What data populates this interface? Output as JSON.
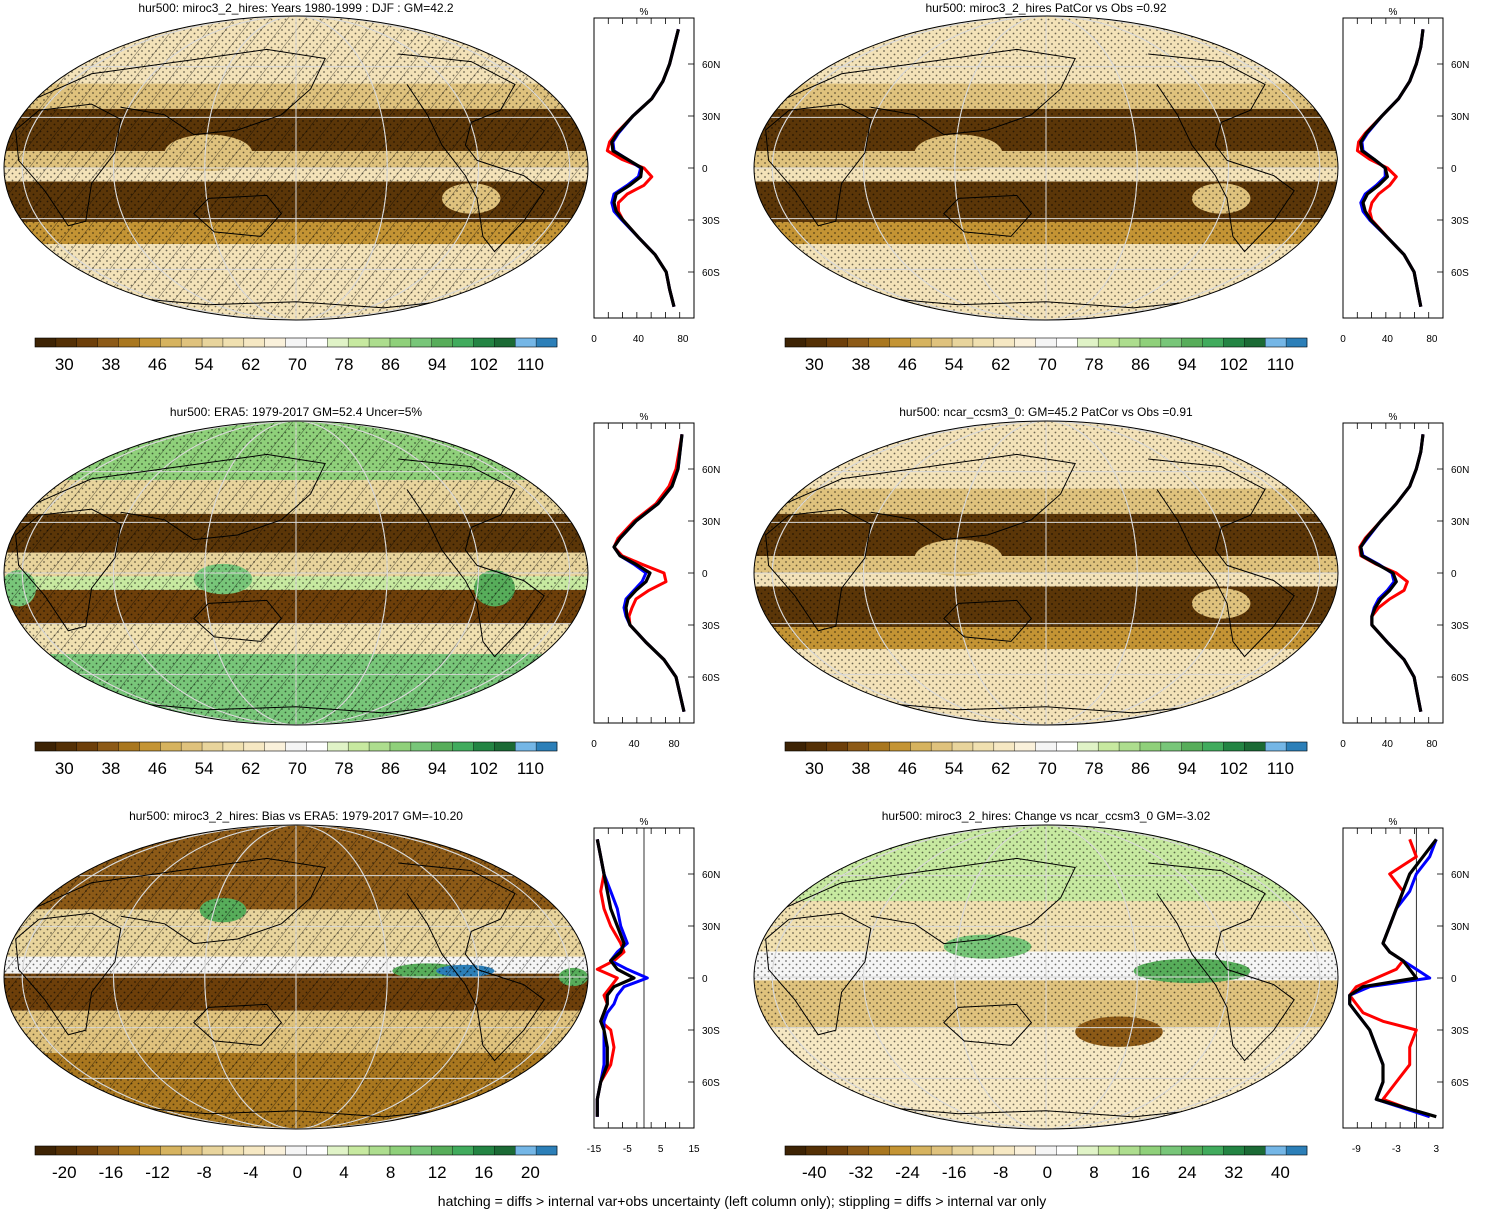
{
  "footer": "hatching = diffs > internal var+obs uncertainty (left column only); stippling = diffs > internal var only",
  "colors": {
    "brown_dark": "#543005",
    "tan": "#dfc27d",
    "cream": "#f6e8c3",
    "white": "#f5f5f5",
    "green_light": "#c7e9a0",
    "green": "#78c679",
    "green_dark": "#238443",
    "blue": "#2c7fb8",
    "line_red": "#ff0000",
    "line_blue": "#0000ff",
    "line_black": "#000000"
  },
  "chart_data": [
    {
      "type": "heatmap",
      "title": "hur500: miroc3_2_hires: Years 1980-1999 : DJF : GM=42.2",
      "colorbar_labels": [
        "30",
        "38",
        "46",
        "54",
        "62",
        "70",
        "78",
        "86",
        "94",
        "102",
        "110"
      ],
      "colorbar_range": [
        26,
        114
      ],
      "profile": {
        "unit": "%",
        "xlim": [
          0,
          90
        ],
        "xticks": [
          "0",
          "40",
          "80"
        ],
        "lat_ticks": [
          "60N",
          "30N",
          "0",
          "30S",
          "60S"
        ],
        "lat": [
          80,
          70,
          60,
          50,
          40,
          30,
          20,
          15,
          10,
          5,
          0,
          -5,
          -10,
          -15,
          -20,
          -25,
          -30,
          -40,
          -50,
          -60,
          -70,
          -80
        ],
        "series": [
          {
            "color": "red",
            "values": [
              76,
              72,
              68,
              62,
              52,
              35,
              20,
              14,
              12,
              25,
              45,
              52,
              45,
              30,
              22,
              22,
              26,
              40,
              55,
              65,
              68,
              72
            ]
          },
          {
            "color": "blue",
            "values": [
              76,
              72,
              68,
              62,
              52,
              35,
              22,
              17,
              18,
              30,
              42,
              40,
              30,
              18,
              16,
              18,
              25,
              40,
              55,
              65,
              68,
              72
            ]
          },
          {
            "color": "black",
            "values": [
              76,
              72,
              68,
              62,
              52,
              35,
              21,
              16,
              17,
              30,
              43,
              42,
              32,
              20,
              18,
              20,
              26,
              40,
              55,
              65,
              68,
              72
            ]
          }
        ]
      }
    },
    {
      "type": "heatmap",
      "title": "hur500: miroc3_2_hires PatCor vs Obs =0.92",
      "colorbar_labels": [
        "30",
        "38",
        "46",
        "54",
        "62",
        "70",
        "78",
        "86",
        "94",
        "102",
        "110"
      ],
      "colorbar_range": [
        26,
        114
      ],
      "profile": {
        "unit": "%",
        "xlim": [
          0,
          90
        ],
        "xticks": [
          "0",
          "40",
          "80"
        ],
        "lat_ticks": [
          "60N",
          "30N",
          "0",
          "30S",
          "60S"
        ],
        "lat": [
          80,
          70,
          60,
          50,
          40,
          30,
          20,
          15,
          10,
          5,
          0,
          -5,
          -10,
          -15,
          -20,
          -25,
          -30,
          -40,
          -50,
          -60,
          -70,
          -80
        ],
        "series": [
          {
            "color": "red",
            "values": [
              72,
              70,
              66,
              60,
              50,
              35,
              20,
              14,
              13,
              24,
              40,
              48,
              42,
              32,
              26,
              24,
              26,
              40,
              55,
              64,
              67,
              70
            ]
          },
          {
            "color": "blue",
            "values": [
              72,
              70,
              66,
              60,
              50,
              35,
              22,
              17,
              18,
              28,
              38,
              38,
              30,
              20,
              16,
              18,
              24,
              40,
              55,
              64,
              67,
              70
            ]
          },
          {
            "color": "black",
            "values": [
              72,
              70,
              66,
              60,
              50,
              35,
              21,
              16,
              17,
              28,
              38,
              40,
              32,
              22,
              18,
              20,
              25,
              40,
              55,
              64,
              67,
              70
            ]
          }
        ]
      }
    },
    {
      "type": "heatmap",
      "title": "hur500: ERA5: 1979-2017 GM=52.4 Uncer=5%",
      "colorbar_labels": [
        "30",
        "38",
        "46",
        "54",
        "62",
        "70",
        "78",
        "86",
        "94",
        "102",
        "110"
      ],
      "colorbar_range": [
        26,
        114
      ],
      "profile": {
        "unit": "%",
        "xlim": [
          0,
          100
        ],
        "xticks": [
          "0",
          "40",
          "80"
        ],
        "lat_ticks": [
          "60N",
          "30N",
          "0",
          "30S",
          "60S"
        ],
        "lat": [
          80,
          70,
          60,
          50,
          40,
          30,
          20,
          15,
          10,
          5,
          0,
          -5,
          -10,
          -15,
          -20,
          -25,
          -30,
          -40,
          -50,
          -60,
          -70,
          -80
        ],
        "series": [
          {
            "color": "red",
            "values": [
              88,
              85,
              82,
              75,
              62,
              40,
              24,
              20,
              28,
              48,
              70,
              72,
              55,
              42,
              38,
              35,
              36,
              52,
              70,
              82,
              86,
              90
            ]
          },
          {
            "color": "blue",
            "values": [
              88,
              86,
              84,
              78,
              64,
              42,
              26,
              20,
              26,
              40,
              52,
              48,
              40,
              32,
              30,
              32,
              36,
              52,
              70,
              82,
              86,
              90
            ]
          },
          {
            "color": "black",
            "values": [
              88,
              86,
              84,
              78,
              64,
              42,
              26,
              20,
              26,
              42,
              56,
              52,
              42,
              34,
              32,
              33,
              36,
              52,
              70,
              82,
              86,
              90
            ]
          }
        ]
      }
    },
    {
      "type": "heatmap",
      "title": "hur500: ncar_ccsm3_0: GM=45.2 PatCor vs Obs =0.91",
      "colorbar_labels": [
        "30",
        "38",
        "46",
        "54",
        "62",
        "70",
        "78",
        "86",
        "94",
        "102",
        "110"
      ],
      "colorbar_range": [
        26,
        114
      ],
      "profile": {
        "unit": "%",
        "xlim": [
          0,
          90
        ],
        "xticks": [
          "0",
          "40",
          "80"
        ],
        "lat_ticks": [
          "60N",
          "30N",
          "0",
          "30S",
          "60S"
        ],
        "lat": [
          80,
          70,
          60,
          50,
          40,
          30,
          20,
          15,
          10,
          5,
          0,
          -5,
          -10,
          -15,
          -20,
          -25,
          -30,
          -40,
          -50,
          -60,
          -70,
          -80
        ],
        "series": [
          {
            "color": "red",
            "values": [
              72,
              70,
              66,
              60,
              48,
              34,
              20,
              15,
              16,
              30,
              48,
              58,
              55,
              42,
              32,
              26,
              26,
              40,
              55,
              64,
              67,
              70
            ]
          },
          {
            "color": "blue",
            "values": [
              72,
              70,
              66,
              60,
              48,
              34,
              22,
              16,
              18,
              32,
              44,
              46,
              40,
              32,
              28,
              26,
              26,
              40,
              55,
              64,
              67,
              70
            ]
          },
          {
            "color": "black",
            "values": [
              72,
              70,
              66,
              60,
              48,
              34,
              21,
              16,
              17,
              31,
              45,
              48,
              42,
              34,
              29,
              26,
              26,
              40,
              55,
              64,
              67,
              70
            ]
          }
        ]
      }
    },
    {
      "type": "heatmap",
      "title": "hur500: miroc3_2_hires: Bias vs ERA5: 1979-2017 GM=-10.20",
      "colorbar_labels": [
        "-20",
        "-16",
        "-12",
        "-8",
        "-4",
        "0",
        "4",
        "8",
        "12",
        "16",
        "20"
      ],
      "colorbar_range": [
        -22,
        22
      ],
      "profile": {
        "unit": "%",
        "xlim": [
          -15,
          15
        ],
        "xticks": [
          "-15",
          "-5",
          "5",
          "15"
        ],
        "lat_ticks": [
          "60N",
          "30N",
          "0",
          "30S",
          "60S"
        ],
        "lat": [
          80,
          70,
          60,
          50,
          40,
          30,
          20,
          15,
          10,
          5,
          0,
          -5,
          -10,
          -15,
          -20,
          -25,
          -30,
          -40,
          -50,
          -60,
          -70,
          -80
        ],
        "series": [
          {
            "color": "red",
            "values": [
              -14,
              -13,
              -12,
              -13,
              -12,
              -10,
              -7,
              -6,
              -9,
              -14,
              -8,
              -10,
              -12,
              -11,
              -12,
              -13,
              -10,
              -9,
              -10,
              -13,
              -14,
              -14
            ]
          },
          {
            "color": "blue",
            "values": [
              -14,
              -13,
              -12,
              -10,
              -8,
              -7,
              -5,
              -8,
              -10,
              -5,
              1,
              -6,
              -8,
              -9,
              -11,
              -12,
              -12,
              -12,
              -12,
              -13,
              -14,
              -14
            ]
          },
          {
            "color": "black",
            "values": [
              -14,
              -13,
              -12,
              -11,
              -10,
              -8,
              -6,
              -7,
              -10,
              -8,
              -3,
              -9,
              -11,
              -11,
              -12,
              -13,
              -12,
              -11,
              -11,
              -13,
              -14,
              -14
            ]
          }
        ]
      }
    },
    {
      "type": "heatmap",
      "title": "hur500: miroc3_2_hires: Change vs ncar_ccsm3_0 GM=-3.02",
      "colorbar_labels": [
        "-40",
        "-32",
        "-24",
        "-16",
        "-8",
        "0",
        "8",
        "16",
        "24",
        "32",
        "40"
      ],
      "colorbar_range": [
        -44,
        44
      ],
      "profile": {
        "unit": "%",
        "xlim": [
          -11,
          4
        ],
        "xticks": [
          "-9",
          "-3",
          "3"
        ],
        "lat_ticks": [
          "60N",
          "30N",
          "0",
          "30S",
          "60S"
        ],
        "lat": [
          80,
          70,
          60,
          50,
          40,
          30,
          20,
          15,
          10,
          5,
          0,
          -5,
          -10,
          -15,
          -20,
          -25,
          -30,
          -40,
          -50,
          -60,
          -70,
          -80
        ],
        "series": [
          {
            "color": "red",
            "values": [
              -1,
              0,
              -4,
              -2,
              -3,
              -4,
              -5,
              -4,
              -2,
              -3,
              -6,
              -9,
              -10,
              -9,
              -8,
              -5,
              0,
              -1,
              -1,
              -3,
              -5,
              2
            ]
          },
          {
            "color": "blue",
            "values": [
              3,
              2,
              0,
              -1,
              -3,
              -4,
              -5,
              -4,
              -2,
              0,
              2,
              -7,
              -10,
              -10,
              -9,
              -8,
              -7,
              -6,
              -5,
              -5,
              -6,
              2
            ]
          },
          {
            "color": "black",
            "values": [
              3,
              1,
              -1,
              -2,
              -3,
              -4,
              -5,
              -4,
              -2,
              -1,
              0,
              -8,
              -10,
              -10,
              -9,
              -8,
              -7,
              -6,
              -5,
              -5,
              -6,
              3
            ]
          }
        ]
      }
    }
  ]
}
